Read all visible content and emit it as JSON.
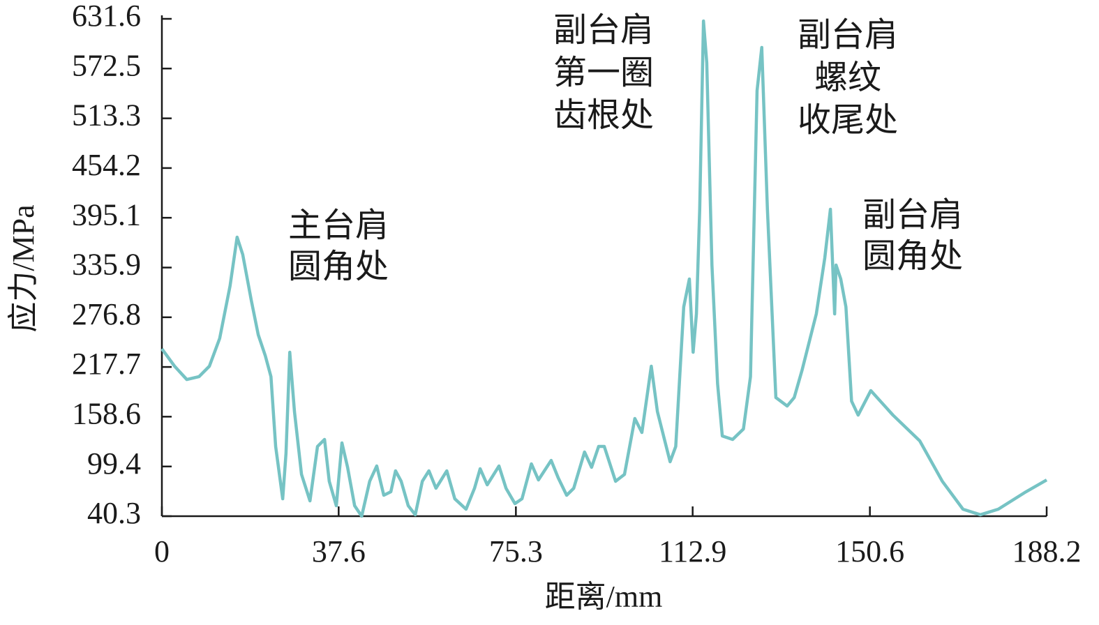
{
  "chart_data": {
    "type": "line",
    "x_label": "距离/mm",
    "y_label": "应力/MPa",
    "xlim": [
      0,
      188.2
    ],
    "ylim": [
      40.3,
      631.6
    ],
    "xticks": [
      0,
      37.6,
      75.3,
      112.9,
      150.6,
      188.2
    ],
    "yticks": [
      40.3,
      99.4,
      158.6,
      217.7,
      276.8,
      335.9,
      395.1,
      454.2,
      513.3,
      572.5,
      631.6
    ],
    "annotations": [
      {
        "lines": [
          "主台肩",
          "圆角处"
        ]
      },
      {
        "lines": [
          "副台肩",
          "第一圈",
          "齿根处"
        ]
      },
      {
        "lines": [
          "副台肩",
          "螺纹",
          "收尾处"
        ]
      },
      {
        "lines": [
          "副台肩",
          "圆角处"
        ]
      }
    ],
    "series": [
      {
        "color": "#76c3c4",
        "x": [
          0,
          2.7,
          5.3,
          7.9,
          10.1,
          12.3,
          14.5,
          16.0,
          17.2,
          19.0,
          20.5,
          22.0,
          23.2,
          24.2,
          25.7,
          26.4,
          27.2,
          28.2,
          29.7,
          31.5,
          33.1,
          34.6,
          35.6,
          37.1,
          38.3,
          39.5,
          41.0,
          42.5,
          44.2,
          45.7,
          47.2,
          48.7,
          49.7,
          50.9,
          52.4,
          53.9,
          55.4,
          56.8,
          58.3,
          60.6,
          62.3,
          64.7,
          66.5,
          67.7,
          69.2,
          71.7,
          73.2,
          75.1,
          76.6,
          78.6,
          80.1,
          82.8,
          84.3,
          86.1,
          87.6,
          89.9,
          91.4,
          92.9,
          94.1,
          96.5,
          98.4,
          100.6,
          102.1,
          104.1,
          105.4,
          106.9,
          108.1,
          109.3,
          111.0,
          112.2,
          113.0,
          113.7,
          114.4,
          115.2,
          115.9,
          117.0,
          118.2,
          119.2,
          121.4,
          123.7,
          125.2,
          126.6,
          127.6,
          128.8,
          130.6,
          133.0,
          134.5,
          136.2,
          139.2,
          141.0,
          142.2,
          143.1,
          143.4,
          144.4,
          145.5,
          146.7,
          148.1,
          150.8,
          155.5,
          161.2,
          166.0,
          170.4,
          174.1,
          177.9,
          183.8,
          188.2
        ],
        "values": [
          239.3,
          218.6,
          202.8,
          206.2,
          218.6,
          251.8,
          314,
          372,
          351.3,
          297.4,
          255.9,
          231,
          206.2,
          123.2,
          61,
          115,
          235.2,
          164.7,
          90,
          58.5,
          123.2,
          131.5,
          81.8,
          52.7,
          127.4,
          98.4,
          52.7,
          40.3,
          81.8,
          100,
          65.2,
          69.3,
          94.2,
          81.8,
          52.7,
          42,
          81.8,
          94.2,
          73.5,
          94.2,
          61,
          48.6,
          73.5,
          96.7,
          77.6,
          100,
          73.5,
          55.2,
          61,
          102.5,
          83.4,
          106.6,
          85.9,
          65.2,
          73.5,
          116.6,
          98.4,
          123.2,
          123.2,
          81.8,
          90,
          156.4,
          139.8,
          218.6,
          164.7,
          131.5,
          105,
          123.2,
          289.1,
          322.3,
          235.2,
          280.8,
          405.2,
          629,
          579.4,
          338.9,
          197.9,
          135.7,
          131.5,
          144,
          206.2,
          546.2,
          597.6,
          405.2,
          181.3,
          171.3,
          181.3,
          214.5,
          280.8,
          347.1,
          405.2,
          280.8,
          338.9,
          322.3,
          289.1,
          177.1,
          160.5,
          189.6,
          160.5,
          129.9,
          81.8,
          48.6,
          42,
          48.6,
          69.3,
          83.4
        ]
      }
    ]
  }
}
